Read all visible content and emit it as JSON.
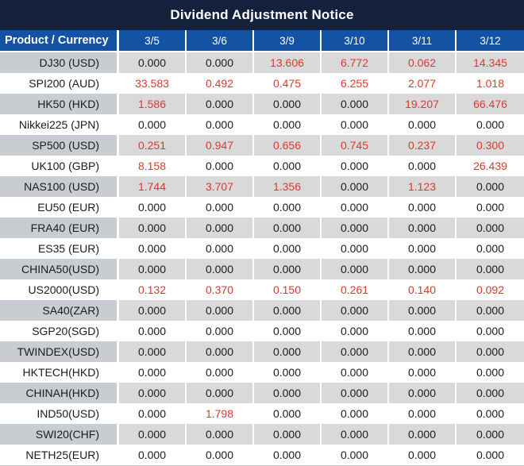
{
  "title": "Dividend Adjustment Notice",
  "colors": {
    "title_bg": "#14213d",
    "header_bg": "#1453a4",
    "shaded_label_bg": "#c9cdd2",
    "shaded_value_bg": "#d9d9d9",
    "nonzero_value_red": "#e2362d",
    "text_dark": "#1b1b1b"
  },
  "chart_data": {
    "type": "table",
    "title": "Dividend Adjustment Notice",
    "columns": [
      "Product / Currency",
      "3/5",
      "3/6",
      "3/9",
      "3/10",
      "3/11",
      "3/12"
    ],
    "rows": [
      {
        "label": "DJ30 (USD)",
        "values": [
          "0.000",
          "0.000",
          "13.606",
          "6.772",
          "0.062",
          "14.345"
        ]
      },
      {
        "label": "SPI200 (AUD)",
        "values": [
          "33.583",
          "0.492",
          "0.475",
          "6.255",
          "2.077",
          "1.018"
        ]
      },
      {
        "label": "HK50 (HKD)",
        "values": [
          "1.586",
          "0.000",
          "0.000",
          "0.000",
          "19.207",
          "66.476"
        ]
      },
      {
        "label": "Nikkei225 (JPN)",
        "values": [
          "0.000",
          "0.000",
          "0.000",
          "0.000",
          "0.000",
          "0.000"
        ]
      },
      {
        "label": "SP500 (USD)",
        "values": [
          "0.251",
          "0.947",
          "0.656",
          "0.745",
          "0.237",
          "0.300"
        ]
      },
      {
        "label": "UK100 (GBP)",
        "values": [
          "8.158",
          "0.000",
          "0.000",
          "0.000",
          "0.000",
          "26.439"
        ]
      },
      {
        "label": "NAS100 (USD)",
        "values": [
          "1.744",
          "3.707",
          "1.356",
          "0.000",
          "1.123",
          "0.000"
        ]
      },
      {
        "label": "EU50 (EUR)",
        "values": [
          "0.000",
          "0.000",
          "0.000",
          "0.000",
          "0.000",
          "0.000"
        ]
      },
      {
        "label": "FRA40 (EUR)",
        "values": [
          "0.000",
          "0.000",
          "0.000",
          "0.000",
          "0.000",
          "0.000"
        ]
      },
      {
        "label": "ES35 (EUR)",
        "values": [
          "0.000",
          "0.000",
          "0.000",
          "0.000",
          "0.000",
          "0.000"
        ]
      },
      {
        "label": "CHINA50(USD)",
        "values": [
          "0.000",
          "0.000",
          "0.000",
          "0.000",
          "0.000",
          "0.000"
        ]
      },
      {
        "label": "US2000(USD)",
        "values": [
          "0.132",
          "0.370",
          "0.150",
          "0.261",
          "0.140",
          "0.092"
        ]
      },
      {
        "label": "SA40(ZAR)",
        "values": [
          "0.000",
          "0.000",
          "0.000",
          "0.000",
          "0.000",
          "0.000"
        ]
      },
      {
        "label": "SGP20(SGD)",
        "values": [
          "0.000",
          "0.000",
          "0.000",
          "0.000",
          "0.000",
          "0.000"
        ]
      },
      {
        "label": "TWINDEX(USD)",
        "values": [
          "0.000",
          "0.000",
          "0.000",
          "0.000",
          "0.000",
          "0.000"
        ]
      },
      {
        "label": "HKTECH(HKD)",
        "values": [
          "0.000",
          "0.000",
          "0.000",
          "0.000",
          "0.000",
          "0.000"
        ]
      },
      {
        "label": "CHINAH(HKD)",
        "values": [
          "0.000",
          "0.000",
          "0.000",
          "0.000",
          "0.000",
          "0.000"
        ]
      },
      {
        "label": "IND50(USD)",
        "values": [
          "0.000",
          "1.798",
          "0.000",
          "0.000",
          "0.000",
          "0.000"
        ]
      },
      {
        "label": "SWI20(CHF)",
        "values": [
          "0.000",
          "0.000",
          "0.000",
          "0.000",
          "0.000",
          "0.000"
        ]
      },
      {
        "label": "NETH25(EUR)",
        "values": [
          "0.000",
          "0.000",
          "0.000",
          "0.000",
          "0.000",
          "0.000"
        ]
      }
    ],
    "legend": "values of 0.000 shown in black; non-zero adjustments shown in red",
    "layout": {
      "striped_rows": "odd rows shaded gray",
      "label_align": "right",
      "value_align": "center"
    }
  }
}
